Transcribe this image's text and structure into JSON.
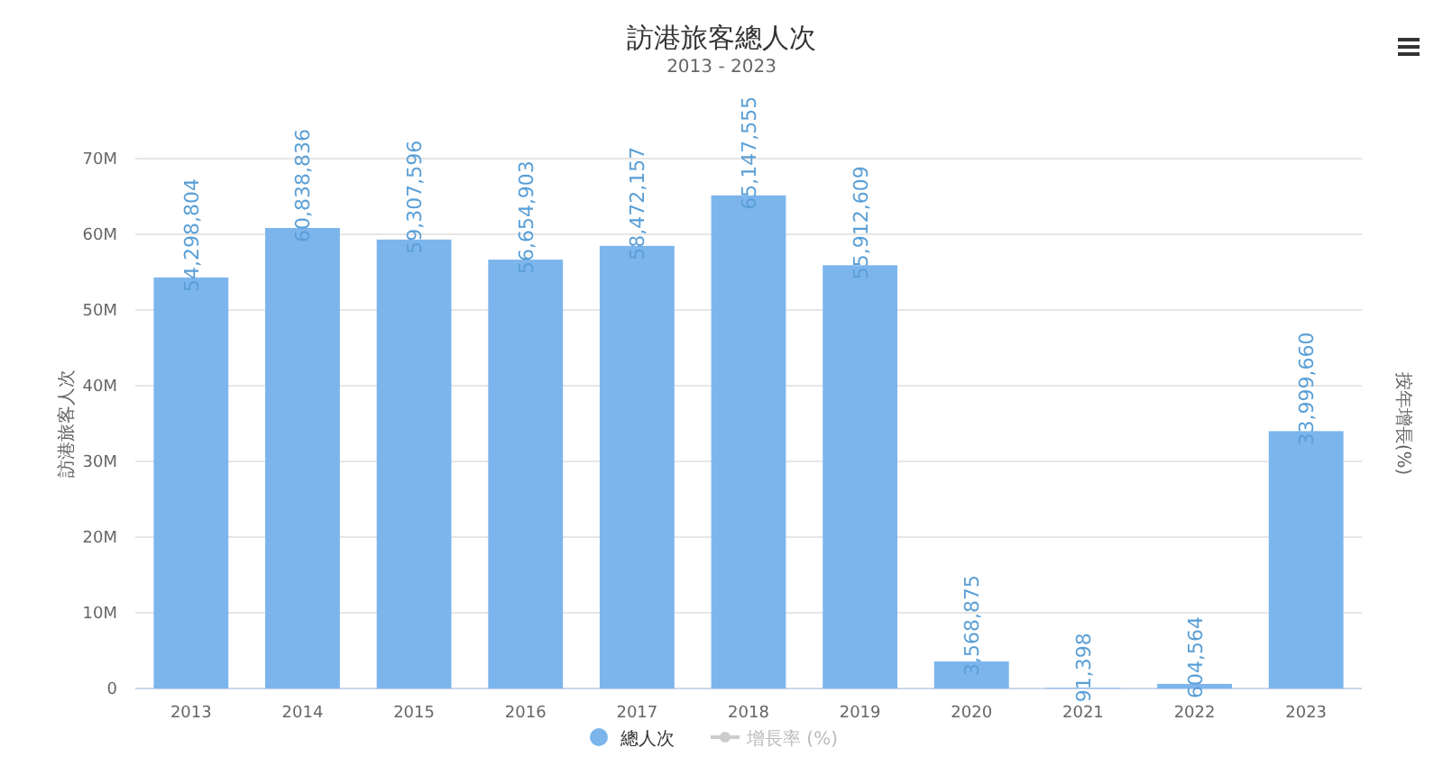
{
  "chart_data": {
    "type": "bar",
    "title": "訪港旅客總人次",
    "subtitle": "2013 - 2023",
    "ylabel": "訪港旅客人次",
    "y2label": "按年增長(%)",
    "categories": [
      "2013",
      "2014",
      "2015",
      "2016",
      "2017",
      "2018",
      "2019",
      "2020",
      "2021",
      "2022",
      "2023"
    ],
    "series": [
      {
        "name": "總人次",
        "color": "#7cb5ec",
        "values": [
          54298804,
          60838836,
          59307596,
          56654903,
          58472157,
          65147555,
          55912609,
          3568875,
          91398,
          604564,
          33999660
        ],
        "value_labels": [
          "54,298,804",
          "60,838,836",
          "59,307,596",
          "56,654,903",
          "58,472,157",
          "65,147,555",
          "55,912,609",
          "3,568,875",
          "91,398",
          "604,564",
          "33,999,660"
        ]
      },
      {
        "name": "增長率 (%)",
        "type": "line",
        "color": "#cccccc",
        "values": [
          null,
          null,
          null,
          null,
          null,
          null,
          null,
          null,
          null,
          null,
          null
        ]
      }
    ],
    "ylim": [
      0,
      70000000
    ],
    "yticks": [
      {
        "value": 0,
        "label": "0"
      },
      {
        "value": 10000000,
        "label": "10M"
      },
      {
        "value": 20000000,
        "label": "20M"
      },
      {
        "value": 30000000,
        "label": "30M"
      },
      {
        "value": 40000000,
        "label": "40M"
      },
      {
        "value": 50000000,
        "label": "50M"
      },
      {
        "value": 60000000,
        "label": "60M"
      },
      {
        "value": 70000000,
        "label": "70M"
      }
    ],
    "grid": "y",
    "legend": "bottom",
    "marker": "circle"
  }
}
